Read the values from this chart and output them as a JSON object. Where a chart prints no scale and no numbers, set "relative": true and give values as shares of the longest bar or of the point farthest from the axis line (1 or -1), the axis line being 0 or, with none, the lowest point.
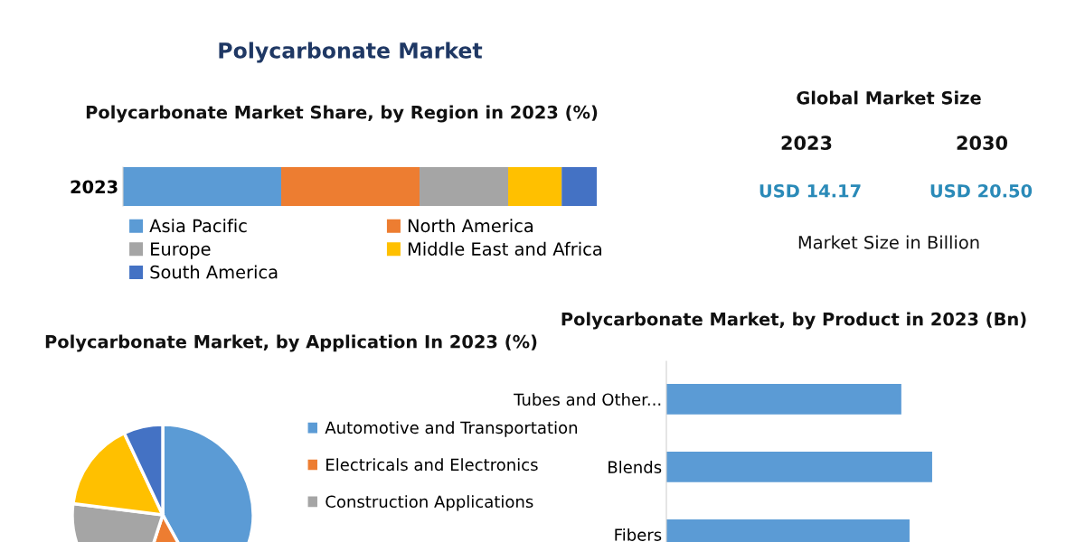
{
  "chart_data": [
    {
      "type": "other",
      "title": "Polycarbonate Market"
    },
    {
      "type": "bar",
      "title": "Polycarbonate Market Share, by Region in 2023 (%)",
      "orientation": "horizontal",
      "stacked": true,
      "relative": true,
      "legend": "bottom",
      "categories": [
        "2023"
      ],
      "series": [
        {
          "name": "Asia Pacific",
          "color": "#5b9bd5",
          "values": [
            0.334
          ]
        },
        {
          "name": "North America",
          "color": "#ed7d31",
          "values": [
            0.292
          ]
        },
        {
          "name": "Europe",
          "color": "#a5a5a5",
          "values": [
            0.187
          ]
        },
        {
          "name": "Middle East and Africa",
          "color": "#ffc000",
          "values": [
            0.113
          ]
        },
        {
          "name": "South America",
          "color": "#4472c4",
          "values": [
            0.074
          ]
        }
      ]
    },
    {
      "type": "other",
      "title": "Global Market Size",
      "annotations": [
        "2023",
        "2030",
        "USD 14.17",
        "USD 20.50",
        "Market Size in Billion"
      ]
    },
    {
      "type": "pie",
      "title": "Polycarbonate Market, by Application In 2023 (%)",
      "legend": "right",
      "categories": [
        "Automotive and Transportation",
        "Electricals and Electronics",
        "Construction Applications",
        null,
        null
      ],
      "values": [
        42,
        13,
        22,
        16,
        7
      ],
      "colors": [
        "#5b9bd5",
        "#ed7d31",
        "#a5a5a5",
        "#ffc000",
        "#4472c4"
      ]
    },
    {
      "type": "bar",
      "title": "Polycarbonate Market, by Product in 2023 (Bn)",
      "orientation": "horizontal",
      "relative": true,
      "categories": [
        "Tubes and Other...",
        "Blends",
        "Fibers"
      ],
      "series": [
        {
          "color": "#5b9bd5",
          "values": [
            0.884,
            1,
            0.915
          ]
        }
      ]
    }
  ]
}
